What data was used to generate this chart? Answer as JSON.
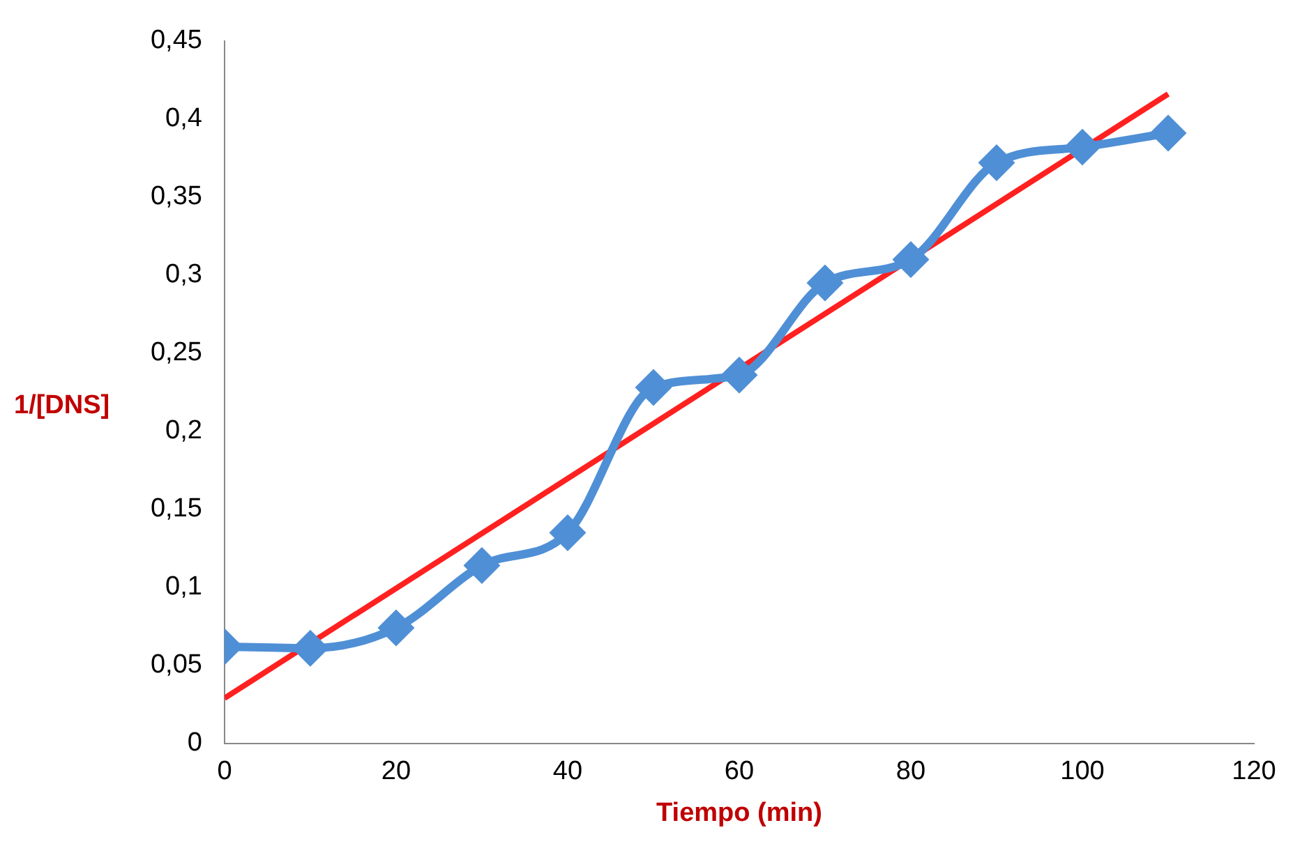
{
  "chart_data": {
    "type": "line",
    "xlabel": "Tiempo (min)",
    "ylabel": "1/[DNS]",
    "x": [
      0,
      10,
      20,
      30,
      40,
      50,
      60,
      70,
      80,
      90,
      100,
      110
    ],
    "series": [
      {
        "color": "#4f8fd6",
        "values": [
          0.062,
          0.061,
          0.074,
          0.114,
          0.135,
          0.228,
          0.236,
          0.295,
          0.31,
          0.372,
          0.382,
          0.391
        ]
      },
      {
        "type": "line",
        "color": "#ff2020",
        "marker": "none",
        "x": [
          0,
          110
        ],
        "values": [
          0.029,
          0.416
        ]
      }
    ],
    "xlim": [
      0,
      120
    ],
    "xticks": [
      0,
      20,
      40,
      60,
      80,
      100,
      120
    ],
    "ylim": [
      0,
      0.45
    ],
    "yticks": [
      0,
      {
        "value": 0.05,
        "label": "0,05"
      },
      {
        "value": 0.1,
        "label": "0,1"
      },
      {
        "value": 0.15,
        "label": "0,15"
      },
      {
        "value": 0.2,
        "label": "0,2"
      },
      {
        "value": 0.25,
        "label": "0,25"
      },
      {
        "value": 0.3,
        "label": "0,3"
      },
      {
        "value": 0.35,
        "label": "0,35"
      },
      {
        "value": 0.4,
        "label": "0,4"
      },
      {
        "value": 0.45,
        "label": "0,45"
      }
    ],
    "grid": false,
    "legend": false,
    "marker": "diamond",
    "line_style": "solid"
  }
}
